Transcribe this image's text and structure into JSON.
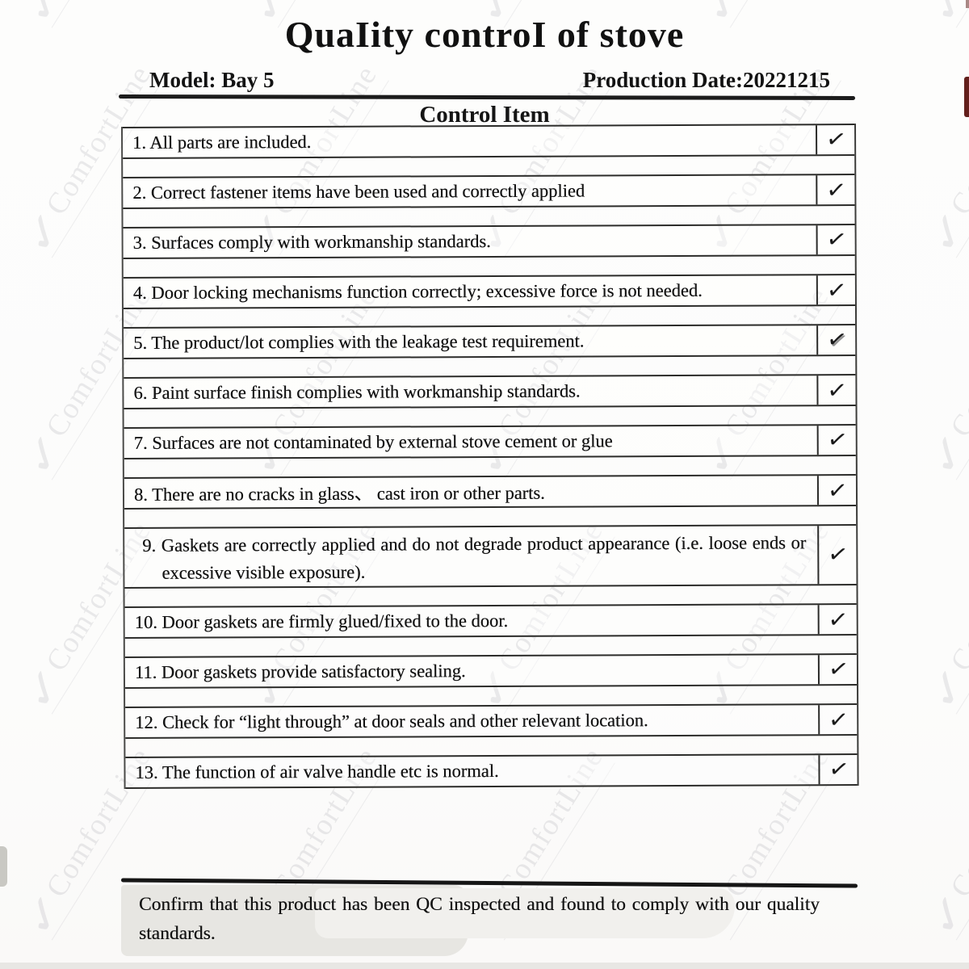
{
  "page": {
    "title": "QuaIity controI of stove",
    "model": "Model: Bay 5",
    "production_date": "Production Date:20221215",
    "section_header": "Control Item"
  },
  "checkmark_glyph": "✓",
  "checklist": [
    {
      "text": "1. All parts are included.",
      "checked": true,
      "tall": false
    },
    {
      "text": "2. Correct fastener items have been used and correctly applied",
      "checked": true,
      "tall": false
    },
    {
      "text": "3. Surfaces comply with workmanship standards.",
      "checked": true,
      "tall": false
    },
    {
      "text": "4. Door locking mechanisms function correctly; excessive force is not needed.",
      "checked": true,
      "tall": false
    },
    {
      "text": "5. The product/lot complies with the leakage test requirement.",
      "checked": true,
      "tall": false
    },
    {
      "text": "6. Paint surface finish complies with workmanship standards.",
      "checked": true,
      "tall": false
    },
    {
      "text": "7. Surfaces are not contaminated by external stove cement or glue",
      "checked": true,
      "tall": false
    },
    {
      "text": "8. There are no cracks in glass、 cast iron or other parts.",
      "checked": true,
      "tall": false
    },
    {
      "text": "9. Gaskets are correctly applied and do not degrade product appearance (i.e. loose ends or excessive visible exposure).",
      "checked": true,
      "tall": true
    },
    {
      "text": "10. Door gaskets are firmly glued/fixed to the door.",
      "checked": true,
      "tall": false
    },
    {
      "text": "11. Door gaskets provide satisfactory sealing.",
      "checked": true,
      "tall": false
    },
    {
      "text": "12. Check for “light through” at door seals and other relevant location.",
      "checked": true,
      "tall": false
    },
    {
      "text": "13. The function of air valve handle etc is normal.",
      "checked": true,
      "tall": false
    }
  ],
  "footer": {
    "confirmation": "Confirm that this product has been QC inspected and found to comply with our quality standards."
  },
  "watermark": {
    "text": "ComfortLine",
    "logo_glyph": "✓"
  },
  "colors": {
    "paper": "#fdfdfc",
    "ink": "#141414",
    "border": "#2c2c2a",
    "watermark": "#64667620",
    "edge_mark": "#63201c"
  }
}
